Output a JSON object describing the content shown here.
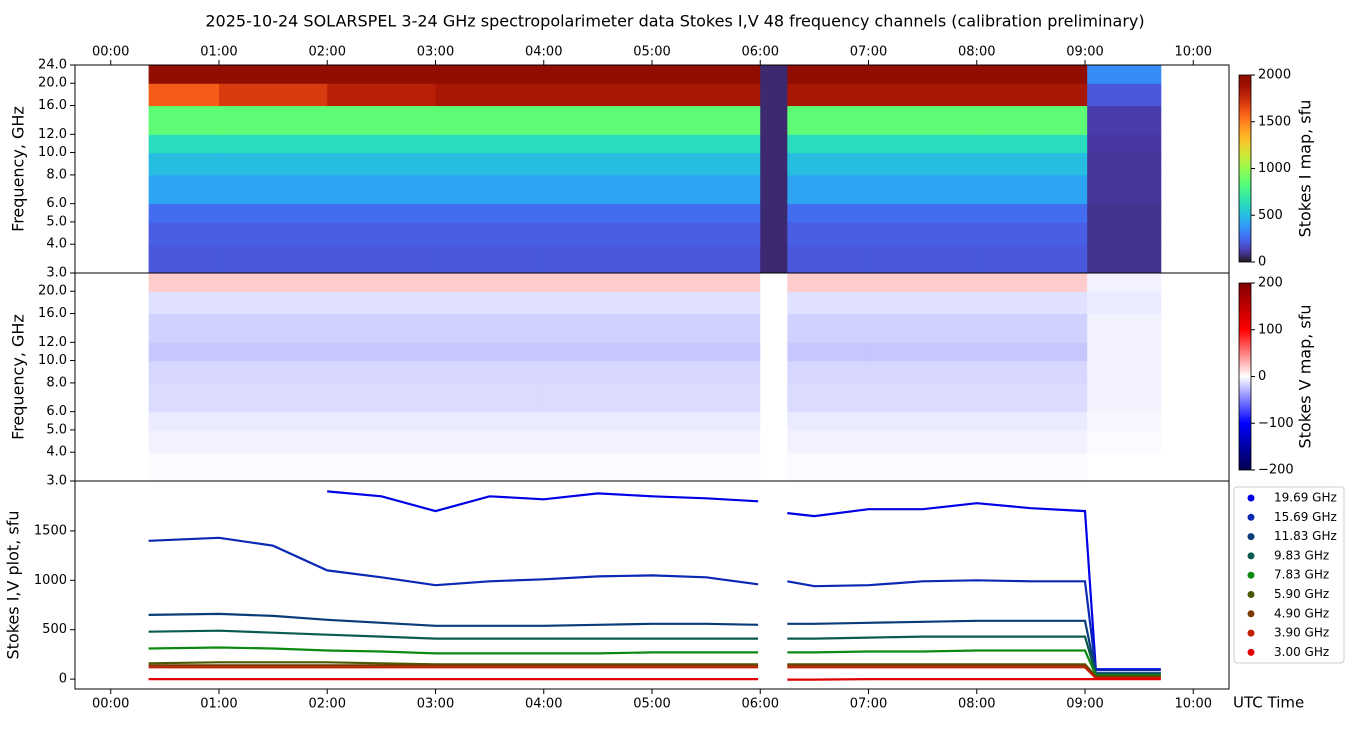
{
  "title": "2025-10-24  SOLARSPEL  3-24 GHz spectropolarimeter data   Stokes I,V   48 frequency channels   (calibration preliminary)",
  "chart_data": [
    {
      "type": "heatmap",
      "ylabel": "Frequency, GHz",
      "colorbar_label": "Stokes I map, sfu",
      "colormap": "turbo",
      "log_y": true,
      "xlim": [
        -0.33,
        10.33
      ],
      "ylim": [
        3,
        24
      ],
      "xticks": [
        {
          "value": 0,
          "label": "00:00"
        },
        {
          "value": 1,
          "label": "01:00"
        },
        {
          "value": 2,
          "label": "02:00"
        },
        {
          "value": 3,
          "label": "03:00"
        },
        {
          "value": 4,
          "label": "04:00"
        },
        {
          "value": 5,
          "label": "05:00"
        },
        {
          "value": 6,
          "label": "06:00"
        },
        {
          "value": 7,
          "label": "07:00"
        },
        {
          "value": 8,
          "label": "08:00"
        },
        {
          "value": 9,
          "label": "09:00"
        },
        {
          "value": 10,
          "label": "10:00"
        }
      ],
      "yticks": [
        {
          "value": 3,
          "label": "3.0"
        },
        {
          "value": 4,
          "label": "4.0"
        },
        {
          "value": 5,
          "label": "5.0"
        },
        {
          "value": 6,
          "label": "6.0"
        },
        {
          "value": 8,
          "label": "8.0"
        },
        {
          "value": 10,
          "label": "10.0"
        },
        {
          "value": 12,
          "label": "12.0"
        },
        {
          "value": 16,
          "label": "16.0"
        },
        {
          "value": 20,
          "label": "20.0"
        },
        {
          "value": 24,
          "label": "24.0"
        }
      ],
      "clim": [
        0,
        2000
      ],
      "cticks": [
        0,
        500,
        1000,
        1500,
        2000
      ],
      "time_bins": [
        0.35,
        1,
        2,
        3,
        4,
        5,
        6.0,
        6.25,
        7,
        8,
        9.02,
        9.7
      ],
      "freq_bins": [
        3,
        4,
        5,
        6,
        8,
        10,
        12,
        16,
        20,
        24
      ],
      "values": [
        [
          200,
          200,
          200,
          200,
          200,
          200,
          60,
          200,
          200,
          200,
          90
        ],
        [
          220,
          220,
          220,
          220,
          220,
          220,
          60,
          220,
          220,
          220,
          90
        ],
        [
          260,
          260,
          260,
          260,
          260,
          260,
          60,
          260,
          260,
          260,
          90
        ],
        [
          420,
          420,
          420,
          420,
          420,
          420,
          60,
          420,
          420,
          420,
          100
        ],
        [
          500,
          500,
          500,
          500,
          500,
          500,
          60,
          500,
          500,
          500,
          100
        ],
        [
          620,
          620,
          620,
          620,
          620,
          620,
          60,
          620,
          620,
          620,
          110
        ],
        [
          850,
          850,
          850,
          850,
          850,
          850,
          60,
          850,
          850,
          850,
          120
        ],
        [
          1600,
          1700,
          1800,
          1850,
          1850,
          1850,
          60,
          1850,
          1850,
          1850,
          200
        ],
        [
          2000,
          2000,
          2000,
          2000,
          2000,
          2000,
          60,
          2000,
          2000,
          2000,
          350
        ]
      ]
    },
    {
      "type": "heatmap",
      "ylabel": "Frequency, GHz",
      "colorbar_label": "Stokes V map, sfu",
      "colormap": "seismic",
      "log_y": true,
      "xlim": [
        -0.33,
        10.33
      ],
      "ylim": [
        3,
        24
      ],
      "yticks": [
        {
          "value": 3,
          "label": "3.0"
        },
        {
          "value": 4,
          "label": "4.0"
        },
        {
          "value": 5,
          "label": "5.0"
        },
        {
          "value": 6,
          "label": "6.0"
        },
        {
          "value": 8,
          "label": "8.0"
        },
        {
          "value": 10,
          "label": "10.0"
        },
        {
          "value": 12,
          "label": "12.0"
        },
        {
          "value": 16,
          "label": "16.0"
        },
        {
          "value": 20,
          "label": "20.0"
        }
      ],
      "clim": [
        -200,
        200
      ],
      "cticks": [
        {
          "value": -200,
          "label": "−200"
        },
        {
          "value": -100,
          "label": "−100"
        },
        0,
        100,
        200
      ],
      "time_bins": [
        0.35,
        1,
        2,
        3,
        4,
        5,
        6.0,
        6.25,
        7,
        8,
        9.02,
        9.7
      ],
      "freq_bins": [
        3,
        4,
        5,
        6,
        8,
        10,
        12,
        16,
        20,
        24
      ],
      "values": [
        [
          -2,
          -2,
          -2,
          -2,
          -2,
          -2,
          0,
          -2,
          -2,
          -2,
          0
        ],
        [
          -5,
          -5,
          -5,
          -5,
          -5,
          -5,
          0,
          -5,
          -5,
          -5,
          -2
        ],
        [
          -8,
          -8,
          -8,
          -8,
          -8,
          -8,
          0,
          -8,
          -8,
          -8,
          -3
        ],
        [
          -14,
          -14,
          -14,
          -14,
          -14,
          -14,
          0,
          -14,
          -14,
          -14,
          -5
        ],
        [
          -16,
          -16,
          -16,
          -16,
          -16,
          -16,
          0,
          -16,
          -16,
          -16,
          -5
        ],
        [
          -22,
          -22,
          -22,
          -22,
          -22,
          -22,
          0,
          -22,
          -22,
          -22,
          -5
        ],
        [
          -18,
          -18,
          -18,
          -18,
          -18,
          -18,
          0,
          -18,
          -18,
          -18,
          -5
        ],
        [
          -12,
          -12,
          -12,
          -12,
          -12,
          -12,
          0,
          -12,
          -12,
          -12,
          -8
        ],
        [
          20,
          20,
          20,
          20,
          20,
          20,
          0,
          20,
          20,
          20,
          -5
        ]
      ]
    },
    {
      "type": "line",
      "ylabel": "Stokes I,V plot, sfu",
      "xlabel": "UTC Time",
      "legend": "outside right",
      "xlim": [
        -0.33,
        10.33
      ],
      "ylim": [
        -100,
        2005
      ],
      "xticks": [
        {
          "value": 0,
          "label": "00:00"
        },
        {
          "value": 1,
          "label": "01:00"
        },
        {
          "value": 2,
          "label": "02:00"
        },
        {
          "value": 3,
          "label": "03:00"
        },
        {
          "value": 4,
          "label": "04:00"
        },
        {
          "value": 5,
          "label": "05:00"
        },
        {
          "value": 6,
          "label": "06:00"
        },
        {
          "value": 7,
          "label": "07:00"
        },
        {
          "value": 8,
          "label": "08:00"
        },
        {
          "value": 9,
          "label": "09:00"
        },
        {
          "value": 10,
          "label": "10:00"
        }
      ],
      "yticks": [
        0,
        500,
        1000,
        1500
      ],
      "x": [
        0.35,
        1,
        1.5,
        2,
        2.5,
        3,
        3.5,
        4,
        4.5,
        5,
        5.5,
        5.98,
        6.1,
        6.25,
        6.5,
        7,
        7.5,
        8,
        8.5,
        9.0,
        9.1,
        9.7
      ],
      "series": [
        {
          "name": "19.69 GHz",
          "color": "#0000e6",
          "values": [
            null,
            null,
            null,
            1900,
            1850,
            1700,
            1850,
            1820,
            1880,
            1850,
            1830,
            1800,
            null,
            1680,
            1650,
            1720,
            1720,
            1780,
            1730,
            1700,
            100,
            100
          ]
        },
        {
          "name": "15.69 GHz",
          "color": "#0a28b4",
          "values": [
            1400,
            1430,
            1350,
            1100,
            1030,
            950,
            990,
            1010,
            1040,
            1050,
            1030,
            960,
            null,
            990,
            940,
            950,
            990,
            1000,
            990,
            990,
            90,
            90
          ]
        },
        {
          "name": "11.83 GHz",
          "color": "#0a3c78",
          "values": [
            650,
            660,
            640,
            600,
            570,
            540,
            540,
            540,
            550,
            560,
            560,
            550,
            null,
            560,
            560,
            570,
            580,
            590,
            590,
            590,
            60,
            60
          ]
        },
        {
          "name": "9.83 GHz",
          "color": "#0a5a50",
          "values": [
            480,
            490,
            470,
            450,
            430,
            410,
            410,
            410,
            410,
            410,
            410,
            410,
            null,
            410,
            410,
            420,
            430,
            430,
            430,
            430,
            50,
            50
          ]
        },
        {
          "name": "7.83 GHz",
          "color": "#0a8a10",
          "values": [
            310,
            320,
            310,
            290,
            280,
            260,
            260,
            260,
            260,
            270,
            270,
            270,
            null,
            270,
            270,
            280,
            280,
            290,
            290,
            290,
            40,
            40
          ]
        },
        {
          "name": "5.90 GHz",
          "color": "#4a5a00",
          "values": [
            160,
            170,
            170,
            170,
            160,
            150,
            150,
            150,
            150,
            150,
            150,
            150,
            null,
            150,
            150,
            150,
            150,
            150,
            150,
            150,
            30,
            30
          ]
        },
        {
          "name": "4.90 GHz",
          "color": "#7a3a00",
          "values": [
            140,
            140,
            140,
            140,
            140,
            140,
            140,
            140,
            140,
            140,
            140,
            140,
            null,
            140,
            140,
            140,
            140,
            140,
            140,
            140,
            20,
            20
          ]
        },
        {
          "name": "3.90 GHz",
          "color": "#c02000",
          "values": [
            120,
            120,
            120,
            120,
            120,
            120,
            120,
            120,
            120,
            120,
            120,
            120,
            null,
            120,
            120,
            120,
            120,
            120,
            120,
            120,
            10,
            10
          ]
        },
        {
          "name": "3.00 GHz",
          "color": "#e00000",
          "values": [
            0,
            0,
            0,
            0,
            0,
            0,
            0,
            0,
            0,
            0,
            0,
            0,
            null,
            -5,
            -5,
            0,
            0,
            0,
            0,
            0,
            0,
            0
          ]
        }
      ]
    }
  ]
}
